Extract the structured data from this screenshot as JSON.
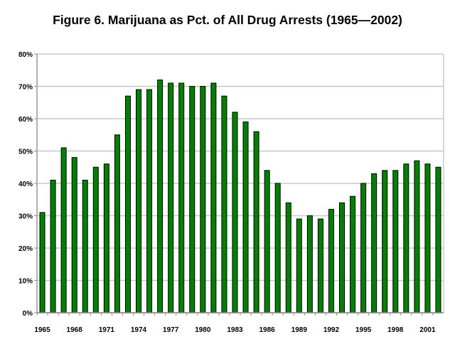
{
  "chart_data": {
    "type": "bar",
    "title": "Figure 6.  Marijuana as Pct. of All Drug Arrests (1965—2002)",
    "xlabel": "",
    "ylabel": "",
    "ylim": [
      0,
      80
    ],
    "yticks": [
      "0%",
      "10%",
      "20%",
      "30%",
      "40%",
      "50%",
      "60%",
      "70%",
      "80%"
    ],
    "xtick_labels": [
      "1965",
      "1968",
      "1971",
      "1974",
      "1977",
      "1980",
      "1983",
      "1986",
      "1989",
      "1992",
      "1995",
      "1998",
      "2001"
    ],
    "categories": [
      1965,
      1966,
      1967,
      1968,
      1969,
      1970,
      1971,
      1972,
      1973,
      1974,
      1975,
      1976,
      1977,
      1978,
      1979,
      1980,
      1981,
      1982,
      1983,
      1984,
      1985,
      1986,
      1987,
      1988,
      1989,
      1990,
      1991,
      1992,
      1993,
      1994,
      1995,
      1996,
      1997,
      1998,
      1999,
      2000,
      2001,
      2002
    ],
    "values": [
      31,
      41,
      51,
      48,
      41,
      45,
      46,
      55,
      67,
      69,
      69,
      72,
      71,
      71,
      70,
      70,
      71,
      67,
      62,
      59,
      56,
      44,
      40,
      34,
      29,
      30,
      29,
      32,
      34,
      36,
      40,
      43,
      44,
      44,
      46,
      47,
      46,
      45
    ],
    "grid": true,
    "bar_color": "#008000"
  }
}
